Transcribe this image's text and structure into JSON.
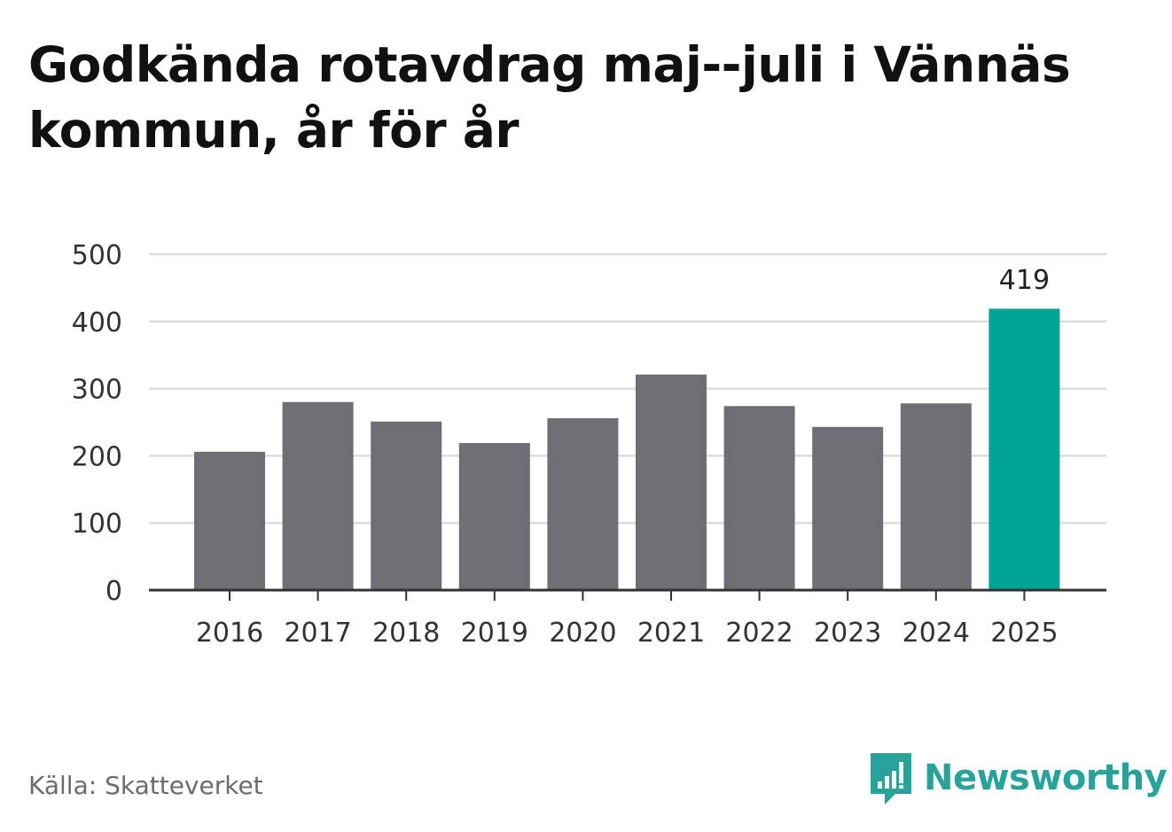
{
  "chart_data": {
    "type": "bar",
    "title": "Godkända rotavdrag maj--juli i Vännäs kommun, år för år",
    "categories": [
      "2016",
      "2017",
      "2018",
      "2019",
      "2020",
      "2021",
      "2022",
      "2023",
      "2024",
      "2025"
    ],
    "values": [
      206,
      280,
      251,
      219,
      256,
      321,
      274,
      243,
      278,
      419
    ],
    "ylim": [
      0,
      500
    ],
    "yticks": [
      0,
      100,
      200,
      300,
      400,
      500
    ],
    "highlight": {
      "category": "2025",
      "label": "419"
    },
    "colors": {
      "bar": "#6f6e74",
      "highlight": "#00a497",
      "grid": "#dddddd",
      "axis": "#333333"
    },
    "grid": true
  },
  "source": "Källa: Skatteverket",
  "brand": {
    "name": "Newsworthy",
    "icon": "newsworthy-logo-icon",
    "color": "#27a39a"
  }
}
